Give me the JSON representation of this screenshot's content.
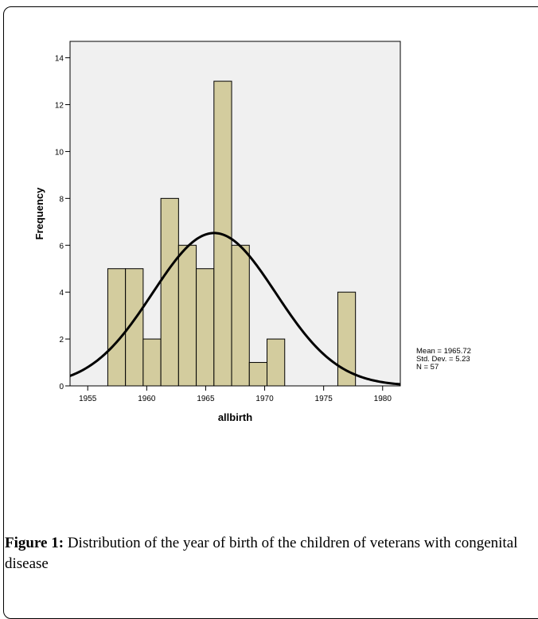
{
  "chart_data": {
    "type": "bar",
    "subtype": "histogram",
    "x_ticks": [
      1955,
      1960,
      1965,
      1970,
      1975,
      1980
    ],
    "y_ticks": [
      0,
      2,
      4,
      6,
      8,
      10,
      12,
      14
    ],
    "xlim": [
      1953.5,
      1981.5
    ],
    "ylim": [
      0,
      14.7
    ],
    "xlabel": "allbirth",
    "ylabel": "Frequency",
    "bins": [
      {
        "x0": 1956.7,
        "x1": 1958.2,
        "value": 5
      },
      {
        "x0": 1958.2,
        "x1": 1959.7,
        "value": 5
      },
      {
        "x0": 1959.7,
        "x1": 1961.2,
        "value": 2
      },
      {
        "x0": 1961.2,
        "x1": 1962.7,
        "value": 8
      },
      {
        "x0": 1962.7,
        "x1": 1964.2,
        "value": 6
      },
      {
        "x0": 1964.2,
        "x1": 1965.7,
        "value": 5
      },
      {
        "x0": 1965.7,
        "x1": 1967.2,
        "value": 13
      },
      {
        "x0": 1967.2,
        "x1": 1968.7,
        "value": 6
      },
      {
        "x0": 1968.7,
        "x1": 1970.2,
        "value": 1
      },
      {
        "x0": 1970.2,
        "x1": 1971.7,
        "value": 2
      },
      {
        "x0": 1976.2,
        "x1": 1977.7,
        "value": 4
      }
    ],
    "normal_curve": {
      "mean": 1965.72,
      "std": 5.23,
      "n": 57,
      "bin_width": 1.5
    },
    "stats": [
      "Mean = 1965.72",
      "Std. Dev. = 5.23",
      "N = 57"
    ],
    "colors": {
      "bar_fill": "#d3cc9e",
      "plot_bg": "#f0f0f0",
      "curve": "#000000"
    },
    "grid": false
  },
  "caption": {
    "label": "Figure 1:",
    "text": " Distribution of the year of birth of the children of veterans with congenital disease"
  }
}
